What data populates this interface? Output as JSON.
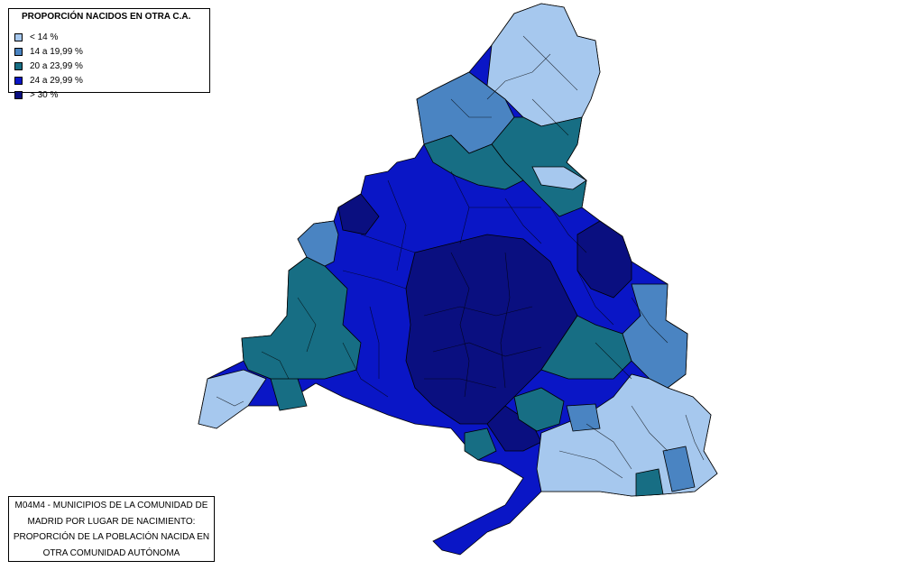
{
  "legend": {
    "title": "PROPORCIÓN NACIDOS EN OTRA C.A.",
    "items": [
      {
        "label": "< 14 %",
        "color": "#a6c8ee"
      },
      {
        "label": "14 a 19,99 %",
        "color": "#4a84c2"
      },
      {
        "label": "20 a 23,99 %",
        "color": "#176e84"
      },
      {
        "label": "24 a 29,99 %",
        "color": "#0a16c6"
      },
      {
        "label": "> 30 %",
        "color": "#0a0f80"
      }
    ]
  },
  "caption": {
    "lines": [
      "M04M4 - MUNICIPIOS DE LA COMUNIDAD DE",
      "MADRID POR LUGAR DE NACIMIENTO:",
      "PROPORCIÓN DE LA POBLACIÓN NACIDA EN",
      "OTRA COMUNIDAD AUTÓNOMA"
    ]
  },
  "map": {
    "region": "Comunidad de Madrid",
    "border_color": "#000000"
  }
}
